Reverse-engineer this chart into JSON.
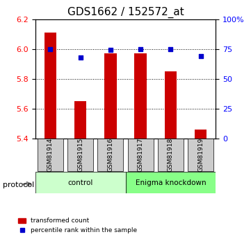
{
  "title": "GDS1662 / 152572_at",
  "samples": [
    "GSM81914",
    "GSM81915",
    "GSM81916",
    "GSM81917",
    "GSM81918",
    "GSM81919"
  ],
  "red_values": [
    6.11,
    5.65,
    5.97,
    5.97,
    5.85,
    5.46
  ],
  "blue_values": [
    75,
    68,
    74,
    75,
    75,
    69
  ],
  "ylim_left": [
    5.4,
    6.2
  ],
  "ylim_right": [
    0,
    100
  ],
  "yticks_left": [
    5.4,
    5.6,
    5.8,
    6.0,
    6.2
  ],
  "yticks_right": [
    0,
    25,
    50,
    75,
    100
  ],
  "ytick_labels_right": [
    "0",
    "25",
    "50",
    "75",
    "100%"
  ],
  "bar_color": "#cc0000",
  "dot_color": "#0000cc",
  "bar_bottom": 5.4,
  "bar_width": 0.4,
  "control_samples": [
    "GSM81914",
    "GSM81915",
    "GSM81916"
  ],
  "knockdown_samples": [
    "GSM81917",
    "GSM81918",
    "GSM81919"
  ],
  "control_label": "control",
  "knockdown_label": "Enigma knockdown",
  "protocol_label": "protocol",
  "legend_red": "transformed count",
  "legend_blue": "percentile rank within the sample",
  "sample_box_color": "#cccccc",
  "control_bg": "#ccffcc",
  "knockdown_bg": "#88ff88",
  "grid_color": "#000000",
  "title_fontsize": 11,
  "tick_fontsize": 8,
  "label_fontsize": 8
}
